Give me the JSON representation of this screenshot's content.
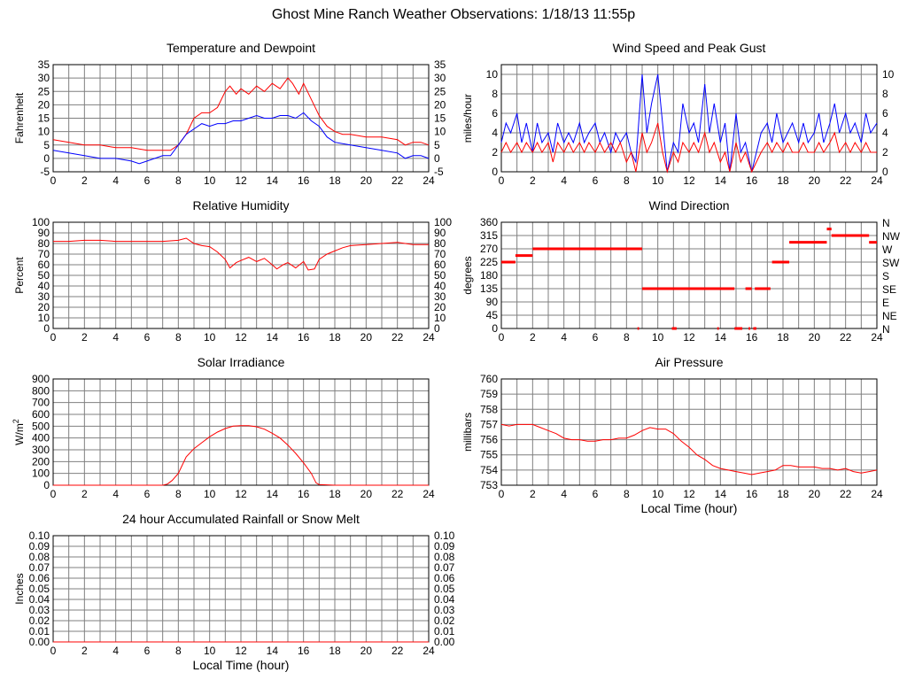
{
  "page_title": "Ghost Mine Ranch Weather Observations: 1/18/13 11:55p",
  "colors": {
    "red": "#ff0000",
    "blue": "#0000ff",
    "grid": "#7f7f7f"
  },
  "chart_data": [
    {
      "id": "temperature",
      "type": "line",
      "title": "Temperature and Dewpoint",
      "xlabel": "",
      "ylabel": "Fahrenheit",
      "xlim": [
        0,
        24
      ],
      "ylim": [
        -5,
        35
      ],
      "x_ticks": [
        0,
        2,
        4,
        6,
        8,
        10,
        12,
        14,
        16,
        18,
        20,
        22,
        24
      ],
      "y_ticks": [
        -5,
        0,
        5,
        10,
        15,
        20,
        25,
        30,
        35
      ],
      "right_axis": true,
      "series": [
        {
          "color": "#ff0000",
          "x": [
            0,
            1,
            2,
            3,
            4,
            5,
            6,
            6.5,
            7,
            7.5,
            8,
            8.5,
            9,
            9.5,
            10,
            10.5,
            11,
            11.3,
            11.7,
            12,
            12.5,
            13,
            13.5,
            14,
            14.5,
            15,
            15.3,
            15.7,
            16,
            16.5,
            17,
            17.5,
            18,
            18.5,
            19,
            20,
            21,
            22,
            22.5,
            23,
            23.5,
            24
          ],
          "y": [
            7,
            6,
            5,
            5,
            4,
            4,
            3,
            3,
            3,
            3,
            5,
            9,
            15,
            17,
            17,
            19,
            25,
            27,
            24,
            26,
            24,
            27,
            25,
            28,
            26,
            30,
            28,
            24,
            28,
            22,
            16,
            12,
            10,
            9,
            9,
            8,
            8,
            7,
            5,
            6,
            6,
            5
          ]
        },
        {
          "color": "#0000ff",
          "x": [
            0,
            1,
            2,
            3,
            4,
            5,
            5.5,
            6,
            6.5,
            7,
            7.5,
            8,
            8.5,
            9,
            9.5,
            10,
            10.5,
            11,
            11.5,
            12,
            12.5,
            13,
            13.5,
            14,
            14.5,
            15,
            15.5,
            16,
            16.5,
            17,
            17.5,
            18,
            19,
            20,
            21,
            22,
            22.5,
            23,
            23.5,
            24
          ],
          "y": [
            3,
            2,
            1,
            0,
            0,
            -1,
            -2,
            -1,
            0,
            1,
            1,
            5,
            9,
            11,
            13,
            12,
            13,
            13,
            14,
            14,
            15,
            16,
            15,
            15,
            16,
            16,
            15,
            17,
            14,
            12,
            8,
            6,
            5,
            4,
            3,
            2,
            0,
            1,
            1,
            0
          ]
        }
      ]
    },
    {
      "id": "wind_speed",
      "type": "line",
      "title": "Wind Speed and Peak Gust",
      "xlabel": "",
      "ylabel": "miles/hour",
      "xlim": [
        0,
        24
      ],
      "ylim": [
        0,
        11
      ],
      "x_ticks": [
        0,
        2,
        4,
        6,
        8,
        10,
        12,
        14,
        16,
        18,
        20,
        22,
        24
      ],
      "y_ticks": [
        0,
        2,
        4,
        6,
        8,
        10
      ],
      "right_axis": true,
      "series": [
        {
          "color": "#0000ff",
          "x": [
            0,
            0.3,
            0.6,
            1,
            1.3,
            1.6,
            2,
            2.3,
            2.6,
            3,
            3.3,
            3.6,
            4,
            4.3,
            4.6,
            5,
            5.3,
            5.6,
            6,
            6.3,
            6.6,
            7,
            7.3,
            7.6,
            8,
            8.3,
            8.6,
            9,
            9.3,
            9.6,
            10,
            10.3,
            10.6,
            11,
            11.3,
            11.6,
            12,
            12.3,
            12.6,
            13,
            13.3,
            13.6,
            14,
            14.3,
            14.6,
            15,
            15.3,
            15.6,
            16,
            16.3,
            16.6,
            17,
            17.3,
            17.6,
            18,
            18.3,
            18.6,
            19,
            19.3,
            19.6,
            20,
            20.3,
            20.6,
            21,
            21.3,
            21.6,
            22,
            22.3,
            22.6,
            23,
            23.3,
            23.6,
            24
          ],
          "y": [
            3,
            5,
            4,
            6,
            3,
            5,
            2,
            5,
            3,
            4,
            2,
            5,
            3,
            4,
            3,
            5,
            3,
            4,
            5,
            3,
            4,
            2,
            4,
            3,
            4,
            2,
            1,
            10,
            4,
            7,
            10,
            5,
            0,
            3,
            2,
            7,
            4,
            5,
            3,
            9,
            4,
            7,
            3,
            5,
            0,
            6,
            2,
            3,
            0,
            2,
            4,
            5,
            3,
            6,
            3,
            4,
            5,
            3,
            5,
            3,
            4,
            6,
            3,
            5,
            7,
            4,
            6,
            4,
            5,
            3,
            6,
            4,
            5
          ]
        },
        {
          "color": "#ff0000",
          "x": [
            0,
            0.3,
            0.6,
            1,
            1.3,
            1.6,
            2,
            2.3,
            2.6,
            3,
            3.3,
            3.6,
            4,
            4.3,
            4.6,
            5,
            5.3,
            5.6,
            6,
            6.3,
            6.6,
            7,
            7.3,
            7.6,
            8,
            8.3,
            8.6,
            9,
            9.3,
            9.6,
            10,
            10.3,
            10.6,
            11,
            11.3,
            11.6,
            12,
            12.3,
            12.6,
            13,
            13.3,
            13.6,
            14,
            14.3,
            14.6,
            15,
            15.3,
            15.6,
            16,
            16.3,
            16.6,
            17,
            17.3,
            17.6,
            18,
            18.3,
            18.6,
            19,
            19.3,
            19.6,
            20,
            20.3,
            20.6,
            21,
            21.3,
            21.6,
            22,
            22.3,
            22.6,
            23,
            23.3,
            23.6,
            24
          ],
          "y": [
            2,
            3,
            2,
            3,
            2,
            3,
            2,
            3,
            2,
            3,
            1,
            3,
            2,
            3,
            2,
            3,
            2,
            3,
            2,
            3,
            2,
            3,
            2,
            3,
            1,
            2,
            0,
            4,
            2,
            3,
            5,
            2,
            0,
            2,
            1,
            3,
            2,
            3,
            2,
            4,
            2,
            3,
            1,
            2,
            0,
            3,
            1,
            2,
            0,
            1,
            2,
            3,
            2,
            3,
            2,
            3,
            2,
            2,
            3,
            2,
            2,
            3,
            2,
            3,
            4,
            2,
            3,
            2,
            3,
            2,
            3,
            2,
            2
          ]
        }
      ]
    },
    {
      "id": "humidity",
      "type": "line",
      "title": "Relative Humidity",
      "xlabel": "",
      "ylabel": "Percent",
      "xlim": [
        0,
        24
      ],
      "ylim": [
        0,
        100
      ],
      "x_ticks": [
        0,
        2,
        4,
        6,
        8,
        10,
        12,
        14,
        16,
        18,
        20,
        22,
        24
      ],
      "y_ticks": [
        0,
        10,
        20,
        30,
        40,
        50,
        60,
        70,
        80,
        90,
        100
      ],
      "right_axis": true,
      "series": [
        {
          "color": "#ff0000",
          "x": [
            0,
            1,
            2,
            3,
            4,
            5,
            6,
            7,
            8,
            8.5,
            9,
            9.5,
            10,
            10.5,
            11,
            11.3,
            11.7,
            12,
            12.5,
            13,
            13.5,
            14,
            14.3,
            14.7,
            15,
            15.5,
            16,
            16.3,
            16.7,
            17,
            17.5,
            18,
            18.5,
            19,
            20,
            21,
            22,
            23,
            24
          ],
          "y": [
            82,
            82,
            83,
            83,
            82,
            82,
            82,
            82,
            83,
            85,
            80,
            78,
            77,
            72,
            65,
            57,
            62,
            64,
            67,
            63,
            66,
            60,
            56,
            60,
            62,
            57,
            63,
            55,
            56,
            65,
            70,
            73,
            76,
            78,
            79,
            80,
            81,
            79,
            79
          ]
        }
      ]
    },
    {
      "id": "wind_direction",
      "type": "scatter",
      "title": "Wind Direction",
      "xlabel": "",
      "ylabel": "degrees",
      "xlim": [
        0,
        24
      ],
      "ylim": [
        0,
        360
      ],
      "x_ticks": [
        0,
        2,
        4,
        6,
        8,
        10,
        12,
        14,
        16,
        18,
        20,
        22,
        24
      ],
      "y_ticks": [
        0,
        45,
        90,
        135,
        180,
        225,
        270,
        315,
        360
      ],
      "right_tick_labels": [
        "N",
        "NE",
        "E",
        "SE",
        "S",
        "SW",
        "W",
        "NW",
        "N"
      ],
      "segments": [
        {
          "x0": 0,
          "x1": 0.9,
          "y": 225
        },
        {
          "x0": 0.9,
          "x1": 2.0,
          "y": 247
        },
        {
          "x0": 2.0,
          "x1": 9.0,
          "y": 270
        },
        {
          "x0": 9.0,
          "x1": 14.9,
          "y": 135
        },
        {
          "x0": 15.6,
          "x1": 16.0,
          "y": 135
        },
        {
          "x0": 16.2,
          "x1": 17.2,
          "y": 135
        },
        {
          "x0": 17.3,
          "x1": 18.4,
          "y": 225
        },
        {
          "x0": 18.4,
          "x1": 20.8,
          "y": 292
        },
        {
          "x0": 20.8,
          "x1": 21.1,
          "y": 337
        },
        {
          "x0": 21.1,
          "x1": 23.5,
          "y": 315
        },
        {
          "x0": 23.5,
          "x1": 24,
          "y": 292
        },
        {
          "x0": 8.7,
          "x1": 8.8,
          "y": 0
        },
        {
          "x0": 10.9,
          "x1": 11.2,
          "y": 0
        },
        {
          "x0": 13.8,
          "x1": 13.9,
          "y": 0
        },
        {
          "x0": 14.9,
          "x1": 15.4,
          "y": 0
        },
        {
          "x0": 15.8,
          "x1": 15.9,
          "y": 0
        },
        {
          "x0": 16.1,
          "x1": 16.3,
          "y": 0
        }
      ]
    },
    {
      "id": "solar",
      "type": "line",
      "title": "Solar Irradiance",
      "xlabel": "",
      "ylabel": "W/m",
      "ylabel_superscript": "2",
      "xlim": [
        0,
        24
      ],
      "ylim": [
        0,
        900
      ],
      "x_ticks": [
        0,
        2,
        4,
        6,
        8,
        10,
        12,
        14,
        16,
        18,
        20,
        22,
        24
      ],
      "y_ticks": [
        0,
        100,
        200,
        300,
        400,
        500,
        600,
        700,
        800,
        900
      ],
      "right_axis": false,
      "series": [
        {
          "color": "#ff0000",
          "x": [
            0,
            7,
            7.3,
            7.6,
            8,
            8.5,
            9,
            9.5,
            10,
            10.5,
            11,
            11.5,
            12,
            12.5,
            13,
            13.5,
            14,
            14.5,
            15,
            15.5,
            16,
            16.5,
            16.8,
            17,
            18,
            24
          ],
          "y": [
            0,
            0,
            10,
            40,
            100,
            240,
            310,
            360,
            410,
            450,
            480,
            500,
            505,
            505,
            495,
            475,
            440,
            400,
            340,
            270,
            190,
            100,
            20,
            5,
            0,
            0
          ]
        }
      ]
    },
    {
      "id": "pressure",
      "type": "line",
      "title": "Air Pressure",
      "xlabel": "Local Time (hour)",
      "ylabel": "millibars",
      "xlim": [
        0,
        24
      ],
      "ylim": [
        753,
        760
      ],
      "x_ticks": [
        0,
        2,
        4,
        6,
        8,
        10,
        12,
        14,
        16,
        18,
        20,
        22,
        24
      ],
      "y_ticks": [
        753,
        754,
        755,
        756,
        757,
        758,
        759,
        760
      ],
      "right_axis": false,
      "series": [
        {
          "color": "#ff0000",
          "x": [
            0,
            0.5,
            1,
            1.5,
            2,
            2.5,
            3,
            3.5,
            4,
            4.5,
            5,
            5.5,
            6,
            6.5,
            7,
            7.5,
            8,
            8.5,
            9,
            9.5,
            10,
            10.5,
            11,
            11.5,
            12,
            12.5,
            13,
            13.5,
            14,
            14.5,
            15,
            15.5,
            16,
            16.5,
            17,
            17.5,
            18,
            18.5,
            19,
            19.5,
            20,
            20.5,
            21,
            21.5,
            22,
            22.5,
            23,
            23.5,
            24
          ],
          "y": [
            757,
            756.9,
            757,
            757,
            757,
            756.8,
            756.6,
            756.4,
            756.1,
            756,
            756,
            755.9,
            755.9,
            756,
            756,
            756.1,
            756.1,
            756.3,
            756.6,
            756.8,
            756.7,
            756.7,
            756.4,
            755.9,
            755.5,
            755,
            754.7,
            754.3,
            754.1,
            754,
            753.9,
            753.8,
            753.7,
            753.8,
            753.9,
            754,
            754.3,
            754.3,
            754.2,
            754.2,
            754.2,
            754.1,
            754.1,
            754,
            754.1,
            753.9,
            753.8,
            753.9,
            754
          ]
        }
      ]
    },
    {
      "id": "rainfall",
      "type": "line",
      "title": "24 hour Accumulated Rainfall or Snow Melt",
      "xlabel": "Local Time (hour)",
      "ylabel": "Inches",
      "xlim": [
        0,
        24
      ],
      "ylim": [
        0,
        0.1
      ],
      "x_ticks": [
        0,
        2,
        4,
        6,
        8,
        10,
        12,
        14,
        16,
        18,
        20,
        22,
        24
      ],
      "y_ticks": [
        "0.00",
        "0.01",
        "0.02",
        "0.03",
        "0.04",
        "0.05",
        "0.06",
        "0.07",
        "0.08",
        "0.09",
        "0.10"
      ],
      "right_axis": true,
      "series": [
        {
          "color": "#ff0000",
          "x": [
            0,
            24
          ],
          "y": [
            0,
            0
          ]
        }
      ]
    }
  ]
}
